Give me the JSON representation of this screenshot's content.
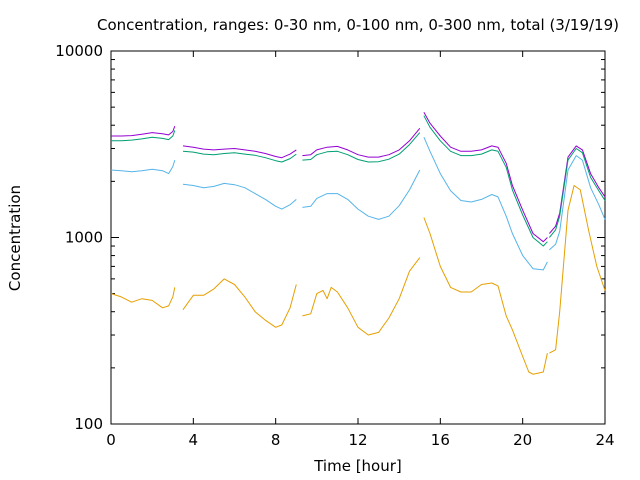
{
  "chart_data": {
    "type": "line",
    "title": "Concentration, ranges: 0-30 nm, 0-100 nm, 0-300 nm, total (3/19/19)",
    "xlabel": "Time [hour]",
    "ylabel": "Concentration",
    "xlim": [
      0,
      24
    ],
    "ylim": [
      100,
      10000
    ],
    "yscale": "log",
    "grid": false,
    "x_ticks": [
      0,
      4,
      8,
      12,
      16,
      20,
      24
    ],
    "y_ticks": [
      100,
      1000,
      10000
    ],
    "colors": {
      "0-30 nm": "#e69f00",
      "0-100 nm": "#56b4e9",
      "0-300 nm": "#009e73",
      "total": "#9400d3"
    },
    "series": [
      {
        "key": "total",
        "segments": [
          [
            [
              0,
              3500
            ],
            [
              0.5,
              3500
            ],
            [
              1,
              3520
            ],
            [
              1.5,
              3580
            ],
            [
              2,
              3650
            ],
            [
              2.5,
              3600
            ],
            [
              2.8,
              3550
            ],
            [
              3.0,
              3700
            ],
            [
              3.1,
              3950
            ]
          ],
          [
            [
              3.5,
              3100
            ],
            [
              4,
              3050
            ],
            [
              4.5,
              2980
            ],
            [
              5,
              2950
            ],
            [
              5.5,
              2980
            ],
            [
              6,
              3000
            ],
            [
              6.5,
              2950
            ],
            [
              7,
              2900
            ],
            [
              7.5,
              2820
            ],
            [
              8,
              2720
            ],
            [
              8.3,
              2680
            ],
            [
              8.7,
              2800
            ],
            [
              9.0,
              2950
            ]
          ],
          [
            [
              9.3,
              2750
            ],
            [
              9.7,
              2780
            ],
            [
              10,
              2950
            ],
            [
              10.5,
              3050
            ],
            [
              11,
              3080
            ],
            [
              11.5,
              2950
            ],
            [
              12,
              2780
            ],
            [
              12.5,
              2700
            ],
            [
              13,
              2700
            ],
            [
              13.5,
              2780
            ],
            [
              14,
              2950
            ],
            [
              14.5,
              3300
            ],
            [
              15.0,
              3850
            ]
          ],
          [
            [
              15.2,
              4700
            ],
            [
              15.5,
              4100
            ],
            [
              16,
              3500
            ],
            [
              16.5,
              3050
            ],
            [
              17,
              2900
            ],
            [
              17.5,
              2900
            ],
            [
              18,
              2950
            ],
            [
              18.5,
              3100
            ],
            [
              18.8,
              3050
            ],
            [
              19.2,
              2500
            ],
            [
              19.5,
              1900
            ],
            [
              20,
              1400
            ],
            [
              20.5,
              1050
            ],
            [
              21.0,
              950
            ],
            [
              21.2,
              1000
            ]
          ],
          [
            [
              21.3,
              1050
            ],
            [
              21.6,
              1150
            ],
            [
              21.8,
              1350
            ],
            [
              22.2,
              2700
            ],
            [
              22.6,
              3100
            ],
            [
              22.9,
              2950
            ],
            [
              23.3,
              2200
            ],
            [
              23.7,
              1850
            ],
            [
              24,
              1650
            ]
          ]
        ]
      },
      {
        "key": "0-300 nm",
        "segments": [
          [
            [
              0,
              3300
            ],
            [
              0.5,
              3300
            ],
            [
              1,
              3330
            ],
            [
              1.5,
              3380
            ],
            [
              2,
              3450
            ],
            [
              2.5,
              3400
            ],
            [
              2.8,
              3350
            ],
            [
              3.0,
              3500
            ],
            [
              3.1,
              3750
            ]
          ],
          [
            [
              3.5,
              2900
            ],
            [
              4,
              2870
            ],
            [
              4.5,
              2800
            ],
            [
              5,
              2780
            ],
            [
              5.5,
              2820
            ],
            [
              6,
              2850
            ],
            [
              6.5,
              2800
            ],
            [
              7,
              2760
            ],
            [
              7.5,
              2680
            ],
            [
              8,
              2580
            ],
            [
              8.3,
              2540
            ],
            [
              8.7,
              2650
            ],
            [
              9.0,
              2800
            ]
          ],
          [
            [
              9.3,
              2600
            ],
            [
              9.7,
              2620
            ],
            [
              10,
              2780
            ],
            [
              10.5,
              2880
            ],
            [
              11,
              2900
            ],
            [
              11.5,
              2780
            ],
            [
              12,
              2620
            ],
            [
              12.5,
              2540
            ],
            [
              13,
              2550
            ],
            [
              13.5,
              2630
            ],
            [
              14,
              2800
            ],
            [
              14.5,
              3150
            ],
            [
              15.0,
              3650
            ]
          ],
          [
            [
              15.2,
              4500
            ],
            [
              15.5,
              3900
            ],
            [
              16,
              3300
            ],
            [
              16.5,
              2900
            ],
            [
              17,
              2750
            ],
            [
              17.5,
              2750
            ],
            [
              18,
              2800
            ],
            [
              18.5,
              2950
            ],
            [
              18.8,
              2900
            ],
            [
              19.2,
              2380
            ],
            [
              19.5,
              1800
            ],
            [
              20,
              1320
            ],
            [
              20.5,
              1000
            ],
            [
              21.0,
              900
            ],
            [
              21.2,
              950
            ]
          ],
          [
            [
              21.3,
              1000
            ],
            [
              21.6,
              1100
            ],
            [
              21.8,
              1300
            ],
            [
              22.2,
              2600
            ],
            [
              22.6,
              3000
            ],
            [
              22.9,
              2850
            ],
            [
              23.3,
              2100
            ],
            [
              23.7,
              1780
            ],
            [
              24,
              1580
            ]
          ]
        ]
      },
      {
        "key": "0-100 nm",
        "segments": [
          [
            [
              0,
              2300
            ],
            [
              0.5,
              2280
            ],
            [
              1,
              2250
            ],
            [
              1.5,
              2280
            ],
            [
              2,
              2320
            ],
            [
              2.5,
              2280
            ],
            [
              2.8,
              2200
            ],
            [
              3.0,
              2400
            ],
            [
              3.1,
              2600
            ]
          ],
          [
            [
              3.5,
              1930
            ],
            [
              4,
              1900
            ],
            [
              4.5,
              1850
            ],
            [
              5,
              1880
            ],
            [
              5.5,
              1950
            ],
            [
              6,
              1920
            ],
            [
              6.5,
              1850
            ],
            [
              7,
              1720
            ],
            [
              7.5,
              1600
            ],
            [
              8,
              1470
            ],
            [
              8.3,
              1420
            ],
            [
              8.7,
              1500
            ],
            [
              9.0,
              1600
            ]
          ],
          [
            [
              9.3,
              1450
            ],
            [
              9.7,
              1470
            ],
            [
              10,
              1620
            ],
            [
              10.5,
              1720
            ],
            [
              11,
              1720
            ],
            [
              11.5,
              1600
            ],
            [
              12,
              1420
            ],
            [
              12.5,
              1300
            ],
            [
              13,
              1250
            ],
            [
              13.5,
              1300
            ],
            [
              14,
              1480
            ],
            [
              14.5,
              1800
            ],
            [
              15.0,
              2300
            ]
          ],
          [
            [
              15.2,
              3450
            ],
            [
              15.5,
              2900
            ],
            [
              16,
              2200
            ],
            [
              16.5,
              1780
            ],
            [
              17,
              1580
            ],
            [
              17.5,
              1550
            ],
            [
              18,
              1600
            ],
            [
              18.5,
              1700
            ],
            [
              18.8,
              1650
            ],
            [
              19.2,
              1300
            ],
            [
              19.5,
              1050
            ],
            [
              20,
              800
            ],
            [
              20.5,
              680
            ],
            [
              21.0,
              670
            ],
            [
              21.2,
              740
            ]
          ],
          [
            [
              21.3,
              860
            ],
            [
              21.6,
              920
            ],
            [
              21.8,
              1080
            ],
            [
              22.2,
              2300
            ],
            [
              22.6,
              2750
            ],
            [
              22.9,
              2600
            ],
            [
              23.3,
              1850
            ],
            [
              23.7,
              1500
            ],
            [
              24,
              1250
            ]
          ]
        ]
      },
      {
        "key": "0-30 nm",
        "segments": [
          [
            [
              0,
              500
            ],
            [
              0.5,
              480
            ],
            [
              1,
              450
            ],
            [
              1.5,
              470
            ],
            [
              2,
              460
            ],
            [
              2.5,
              420
            ],
            [
              2.8,
              430
            ],
            [
              3.0,
              480
            ],
            [
              3.1,
              540
            ]
          ],
          [
            [
              3.5,
              410
            ],
            [
              4,
              490
            ],
            [
              4.5,
              490
            ],
            [
              5,
              530
            ],
            [
              5.5,
              600
            ],
            [
              6,
              560
            ],
            [
              6.5,
              480
            ],
            [
              7,
              400
            ],
            [
              7.5,
              360
            ],
            [
              8,
              330
            ],
            [
              8.3,
              340
            ],
            [
              8.7,
              420
            ],
            [
              9.0,
              560
            ]
          ],
          [
            [
              9.3,
              380
            ],
            [
              9.7,
              390
            ],
            [
              10,
              500
            ],
            [
              10.3,
              520
            ],
            [
              10.5,
              470
            ],
            [
              10.7,
              540
            ],
            [
              11,
              510
            ],
            [
              11.5,
              420
            ],
            [
              12,
              330
            ],
            [
              12.5,
              300
            ],
            [
              13,
              310
            ],
            [
              13.5,
              370
            ],
            [
              14,
              470
            ],
            [
              14.5,
              660
            ],
            [
              15.0,
              780
            ]
          ],
          [
            [
              15.2,
              1280
            ],
            [
              15.5,
              1050
            ],
            [
              16,
              700
            ],
            [
              16.5,
              540
            ],
            [
              17,
              510
            ],
            [
              17.5,
              510
            ],
            [
              18,
              560
            ],
            [
              18.5,
              570
            ],
            [
              18.8,
              550
            ],
            [
              19.2,
              380
            ],
            [
              19.5,
              320
            ],
            [
              20,
              230
            ],
            [
              20.3,
              190
            ],
            [
              20.5,
              185
            ],
            [
              21.0,
              190
            ],
            [
              21.2,
              240
            ]
          ],
          [
            [
              21.3,
              240
            ],
            [
              21.6,
              250
            ],
            [
              21.8,
              400
            ],
            [
              22.2,
              1400
            ],
            [
              22.5,
              1900
            ],
            [
              22.8,
              1800
            ],
            [
              23.2,
              1100
            ],
            [
              23.6,
              700
            ],
            [
              24,
              520
            ]
          ]
        ]
      }
    ]
  }
}
